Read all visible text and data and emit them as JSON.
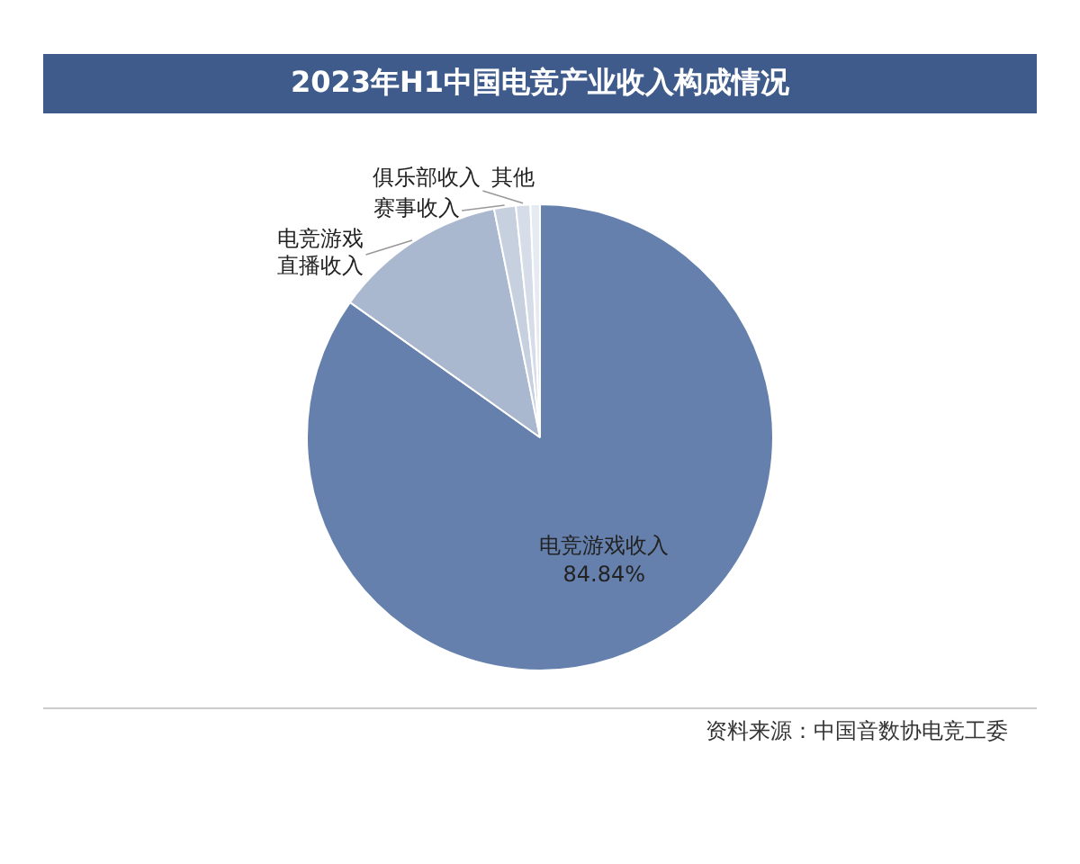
{
  "chart_data": {
    "type": "pie",
    "title": "2023年H1中国电竞产业收入构成情况",
    "categories": [
      "电竞游戏收入",
      "电竞游戏直播收入",
      "赛事收入",
      "俱乐部收入",
      "其他"
    ],
    "values": [
      84.84,
      12.0,
      1.5,
      1.0,
      0.66
    ],
    "value_labels": [
      "84.84%",
      null,
      null,
      null,
      null
    ],
    "colors": [
      "#6580ad",
      "#a9b7cf",
      "#c6d0df",
      "#d6dde8",
      "#e6ebf2"
    ],
    "legend": false,
    "annotations": [
      "资料来源：中国音数协电竞工委"
    ]
  }
}
